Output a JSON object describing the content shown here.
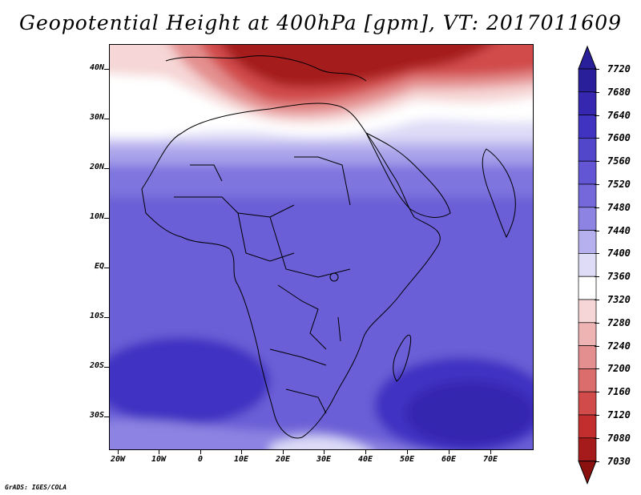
{
  "title": "Geopotential Height at 400hPa [gpm], VT: 2017011609",
  "credit": "GrADS: IGES/COLA",
  "lat_labels": [
    "40N",
    "30N",
    "20N",
    "10N",
    "EQ",
    "10S",
    "20S",
    "30S"
  ],
  "lon_labels": [
    "20W",
    "10W",
    "0",
    "10E",
    "20E",
    "30E",
    "40E",
    "50E",
    "60E",
    "70E"
  ],
  "colorbar": {
    "labels": [
      "7720",
      "7680",
      "7640",
      "7600",
      "7560",
      "7520",
      "7480",
      "7440",
      "7400",
      "7360",
      "7320",
      "7280",
      "7240",
      "7200",
      "7160",
      "7120",
      "7080",
      "7030"
    ],
    "colors": [
      "#2a1f9a",
      "#3527b0",
      "#4133c2",
      "#5246cb",
      "#6256d4",
      "#7468da",
      "#8c83e2",
      "#b6b0ee",
      "#dedcf7",
      "#ffffff",
      "#f6d6d6",
      "#eeb3b3",
      "#e48f8f",
      "#db6d6d",
      "#d14b4b",
      "#c22e2e",
      "#a51b1b",
      "#8b1010"
    ]
  },
  "map": {
    "projection": "latitude-longitude",
    "lon_range": [
      "20W",
      "80E"
    ],
    "lat_range": [
      "37S",
      "45N"
    ]
  }
}
